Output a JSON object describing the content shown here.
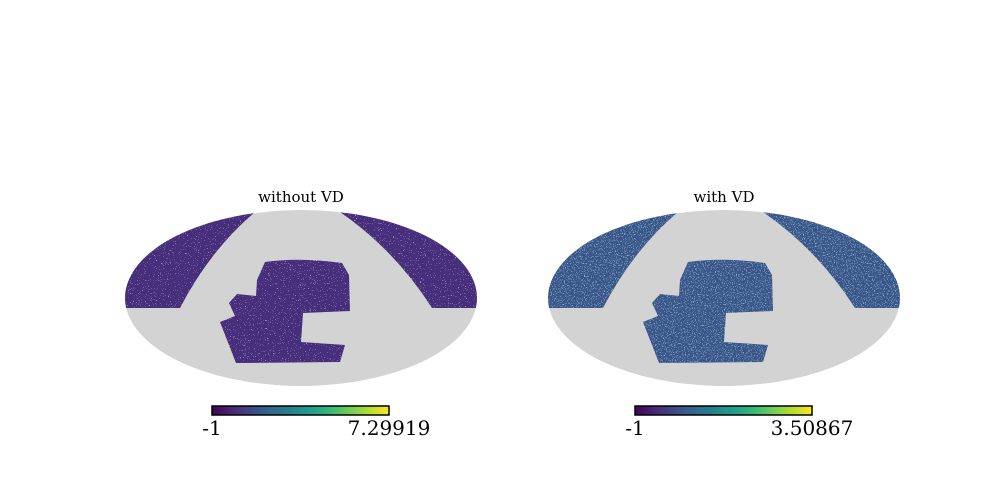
{
  "chart_data": [
    {
      "type": "heatmap",
      "projection": "mollweide",
      "title": "without VD",
      "colormap": "viridis",
      "colorbar": {
        "min_label": "-1",
        "max_label": "7.29919",
        "min": -1,
        "max": 7.29919
      },
      "mask_color": "#d3d3d3",
      "typical_color": "#472d7b",
      "speckle": 0.15
    },
    {
      "type": "heatmap",
      "projection": "mollweide",
      "title": "with VD",
      "colormap": "viridis",
      "colorbar": {
        "min_label": "-1",
        "max_label": "3.50867",
        "min": -1,
        "max": 3.50867
      },
      "mask_color": "#d3d3d3",
      "typical_color": "#3b528b",
      "speckle": 0.55
    }
  ],
  "colormap_stops": [
    "#440154",
    "#482777",
    "#3e4989",
    "#31688e",
    "#26828e",
    "#1f9e89",
    "#35b779",
    "#6ece58",
    "#b5de2b",
    "#fde725"
  ]
}
